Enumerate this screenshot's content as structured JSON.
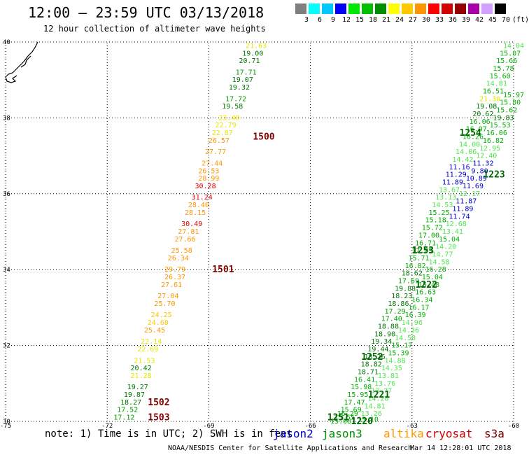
{
  "title": "12:00 – 23:59 UTC 03/13/2018",
  "subtitle": "12 hour collection of altimeter wave heights",
  "scale": {
    "colors": [
      "#7f7f7f",
      "#00ffff",
      "#00c8ff",
      "#0000ff",
      "#00e600",
      "#00c000",
      "#008c00",
      "#ffff00",
      "#ffc800",
      "#ff9600",
      "#ff0000",
      "#d20000",
      "#960000",
      "#aa00aa",
      "#d2a0ff",
      "#000000"
    ],
    "labels": [
      "3",
      "6",
      "9",
      "12",
      "15",
      "18",
      "21",
      "24",
      "27",
      "30",
      "33",
      "36",
      "39",
      "42",
      "45",
      "70",
      "(ft)"
    ]
  },
  "axes": {
    "lon_ticks": [
      "-75",
      "-72",
      "-69",
      "-66",
      "-63",
      "-60"
    ],
    "lat_ticks": [
      "30",
      "32",
      "34",
      "36",
      "38",
      "40"
    ]
  },
  "note": "note: 1) Time is in UTC; 2) SWH is in feet",
  "satellites": [
    {
      "name": "jason2",
      "color": "#0000cc"
    },
    {
      "name": "jason3",
      "color": "#009000"
    },
    {
      "name": "altika",
      "color": "#ff9900"
    },
    {
      "name": "cryosat",
      "color": "#cc0000"
    },
    {
      "name": "s3a",
      "color": "#7a0000"
    }
  ],
  "credit": "NOAA/NESDIS Center for Satellite Applications and Research",
  "timestamp": "Mar 14 12:28:01 UTC 2018",
  "passes": [
    {
      "label": "1500",
      "color": "#800000",
      "lon": -67.7,
      "lat": 37.5
    },
    {
      "label": "1501",
      "color": "#800000",
      "lon": -68.9,
      "lat": 34.0
    },
    {
      "label": "1502",
      "color": "#800000",
      "lon": -70.8,
      "lat": 30.5
    },
    {
      "label": "1503",
      "color": "#800000",
      "lon": -70.8,
      "lat": 30.1
    },
    {
      "label": "1254",
      "color": "#006400",
      "lon": -61.6,
      "lat": 37.6
    },
    {
      "label": "1223",
      "color": "#006400",
      "lon": -60.9,
      "lat": 36.5
    },
    {
      "label": "1253",
      "color": "#006400",
      "lon": -63.0,
      "lat": 34.5
    },
    {
      "label": "1222",
      "color": "#006400",
      "lon": -62.9,
      "lat": 33.6
    },
    {
      "label": "1252",
      "color": "#006400",
      "lon": -64.5,
      "lat": 31.7
    },
    {
      "label": "1221",
      "color": "#006400",
      "lon": -64.3,
      "lat": 30.7
    },
    {
      "label": "1251",
      "color": "#006400",
      "lon": -65.5,
      "lat": 30.1
    },
    {
      "label": "1220",
      "color": "#006400",
      "lon": -64.8,
      "lat": 30.0
    }
  ],
  "tracks": [
    {
      "name": "track-1500",
      "points": [
        {
          "lon": -67.6,
          "lat": 39.9,
          "v": "21.63",
          "c": "#e6e600"
        },
        {
          "lon": -67.7,
          "lat": 39.7,
          "v": "19.00",
          "c": "#007800"
        },
        {
          "lon": -67.8,
          "lat": 39.5,
          "v": "20.71",
          "c": "#007800"
        },
        {
          "lon": -67.9,
          "lat": 39.2,
          "v": "17.71",
          "c": "#00a000"
        },
        {
          "lon": -68.0,
          "lat": 39.0,
          "v": "19.07",
          "c": "#007800"
        },
        {
          "lon": -68.1,
          "lat": 38.8,
          "v": "19.32",
          "c": "#007800"
        },
        {
          "lon": -68.2,
          "lat": 38.5,
          "v": "17.72",
          "c": "#00a000"
        },
        {
          "lon": -68.3,
          "lat": 38.3,
          "v": "19.58",
          "c": "#007800"
        },
        {
          "lon": -68.4,
          "lat": 38.0,
          "v": "23.40",
          "c": "#e6e600"
        },
        {
          "lon": -68.5,
          "lat": 37.8,
          "v": "22.79",
          "c": "#e6e600"
        },
        {
          "lon": -68.6,
          "lat": 37.6,
          "v": "22.87",
          "c": "#e6e600"
        },
        {
          "lon": -68.7,
          "lat": 37.4,
          "v": "26.57",
          "c": "#ff9600"
        },
        {
          "lon": -68.8,
          "lat": 37.1,
          "v": "27.77",
          "c": "#ff9600"
        },
        {
          "lon": -68.9,
          "lat": 36.8,
          "v": "27.44",
          "c": "#ff9600"
        },
        {
          "lon": -69.0,
          "lat": 36.6,
          "v": "26.53",
          "c": "#ff9600"
        },
        {
          "lon": -69.0,
          "lat": 36.4,
          "v": "28.99",
          "c": "#ff9600"
        },
        {
          "lon": -69.1,
          "lat": 36.2,
          "v": "30.28",
          "c": "#e00000"
        },
        {
          "lon": -69.2,
          "lat": 35.9,
          "v": "31.24",
          "c": "#e00000"
        },
        {
          "lon": -69.3,
          "lat": 35.7,
          "v": "28.40",
          "c": "#ff9600"
        },
        {
          "lon": -69.4,
          "lat": 35.5,
          "v": "28.15",
          "c": "#ff9600"
        },
        {
          "lon": -69.5,
          "lat": 35.2,
          "v": "30.49",
          "c": "#e00000"
        },
        {
          "lon": -69.6,
          "lat": 35.0,
          "v": "27.81",
          "c": "#ff9600"
        },
        {
          "lon": -69.7,
          "lat": 34.8,
          "v": "27.66",
          "c": "#ff9600"
        },
        {
          "lon": -69.8,
          "lat": 34.5,
          "v": "25.58",
          "c": "#ff9600"
        },
        {
          "lon": -69.9,
          "lat": 34.3,
          "v": "26.34",
          "c": "#ff9600"
        },
        {
          "lon": -70.0,
          "lat": 34.0,
          "v": "29.79",
          "c": "#ff9600"
        },
        {
          "lon": -70.0,
          "lat": 33.8,
          "v": "26.37",
          "c": "#ff9600"
        },
        {
          "lon": -70.1,
          "lat": 33.6,
          "v": "27.61",
          "c": "#ff9600"
        },
        {
          "lon": -70.2,
          "lat": 33.3,
          "v": "27.04",
          "c": "#ff9600"
        },
        {
          "lon": -70.3,
          "lat": 33.1,
          "v": "25.70",
          "c": "#ff9600"
        },
        {
          "lon": -70.4,
          "lat": 32.8,
          "v": "24.25",
          "c": "#ffc800"
        },
        {
          "lon": -70.5,
          "lat": 32.6,
          "v": "24.60",
          "c": "#ffc800"
        },
        {
          "lon": -70.6,
          "lat": 32.4,
          "v": "25.45",
          "c": "#ff9600"
        },
        {
          "lon": -70.7,
          "lat": 32.1,
          "v": "22.14",
          "c": "#e6e600"
        },
        {
          "lon": -70.8,
          "lat": 31.9,
          "v": "22.69",
          "c": "#e6e600"
        },
        {
          "lon": -70.9,
          "lat": 31.6,
          "v": "21.53",
          "c": "#e6e600"
        },
        {
          "lon": -71.0,
          "lat": 31.4,
          "v": "20.42",
          "c": "#007800"
        },
        {
          "lon": -71.0,
          "lat": 31.2,
          "v": "21.28",
          "c": "#e6e600"
        },
        {
          "lon": -71.1,
          "lat": 30.9,
          "v": "19.27",
          "c": "#007800"
        },
        {
          "lon": -71.2,
          "lat": 30.7,
          "v": "19.87",
          "c": "#007800"
        },
        {
          "lon": -71.3,
          "lat": 30.5,
          "v": "18.27",
          "c": "#007800"
        },
        {
          "lon": -71.4,
          "lat": 30.3,
          "v": "17.52",
          "c": "#00a000"
        },
        {
          "lon": -71.5,
          "lat": 30.1,
          "v": "17.12",
          "c": "#00a000"
        }
      ]
    },
    {
      "name": "track-1254-1251",
      "points": [
        {
          "lon": -60.0,
          "lat": 39.9,
          "v": "14.04",
          "c": "#50e650"
        },
        {
          "lon": -60.1,
          "lat": 39.7,
          "v": "15.07",
          "c": "#00b000"
        },
        {
          "lon": -60.2,
          "lat": 39.5,
          "v": "15.66",
          "c": "#00b000"
        },
        {
          "lon": -60.3,
          "lat": 39.3,
          "v": "15.78",
          "c": "#00b000"
        },
        {
          "lon": -60.4,
          "lat": 39.1,
          "v": "15.60",
          "c": "#00b000"
        },
        {
          "lon": -60.5,
          "lat": 38.9,
          "v": "14.81",
          "c": "#50e650"
        },
        {
          "lon": -60.6,
          "lat": 38.7,
          "v": "16.51",
          "c": "#00b000"
        },
        {
          "lon": -60.7,
          "lat": 38.5,
          "v": "21.30",
          "c": "#e6e600"
        },
        {
          "lon": -60.8,
          "lat": 38.3,
          "v": "19.08",
          "c": "#007800"
        },
        {
          "lon": -60.9,
          "lat": 38.1,
          "v": "20.62",
          "c": "#007800"
        },
        {
          "lon": -61.0,
          "lat": 37.9,
          "v": "16.06",
          "c": "#00b000"
        },
        {
          "lon": -61.1,
          "lat": 37.7,
          "v": "16.97",
          "c": "#00b000"
        },
        {
          "lon": -61.2,
          "lat": 37.5,
          "v": "16.26",
          "c": "#00b000"
        },
        {
          "lon": -61.3,
          "lat": 37.3,
          "v": "14.00",
          "c": "#50e650"
        },
        {
          "lon": -61.4,
          "lat": 37.1,
          "v": "14.06",
          "c": "#50e650"
        },
        {
          "lon": -61.5,
          "lat": 36.9,
          "v": "14.42",
          "c": "#50e650"
        },
        {
          "lon": -61.6,
          "lat": 36.7,
          "v": "11.16",
          "c": "#0000cc"
        },
        {
          "lon": -61.7,
          "lat": 36.5,
          "v": "11.29",
          "c": "#0000cc"
        },
        {
          "lon": -61.8,
          "lat": 36.3,
          "v": "11.89",
          "c": "#0000cc"
        },
        {
          "lon": -61.9,
          "lat": 36.1,
          "v": "13.67",
          "c": "#50e650"
        },
        {
          "lon": -62.0,
          "lat": 35.9,
          "v": "13.13",
          "c": "#50e650"
        },
        {
          "lon": -62.1,
          "lat": 35.7,
          "v": "14.53",
          "c": "#50e650"
        },
        {
          "lon": -62.2,
          "lat": 35.5,
          "v": "15.25",
          "c": "#00b000"
        },
        {
          "lon": -62.3,
          "lat": 35.3,
          "v": "15.18",
          "c": "#00b000"
        },
        {
          "lon": -62.4,
          "lat": 35.1,
          "v": "15.72",
          "c": "#00b000"
        },
        {
          "lon": -62.5,
          "lat": 34.9,
          "v": "17.00",
          "c": "#00a000"
        },
        {
          "lon": -62.6,
          "lat": 34.7,
          "v": "16.71",
          "c": "#00b000"
        },
        {
          "lon": -62.7,
          "lat": 34.5,
          "v": "17.09",
          "c": "#00a000"
        },
        {
          "lon": -62.8,
          "lat": 34.3,
          "v": "15.71",
          "c": "#00b000"
        },
        {
          "lon": -62.9,
          "lat": 34.1,
          "v": "16.82",
          "c": "#00b000"
        },
        {
          "lon": -63.0,
          "lat": 33.9,
          "v": "18.62",
          "c": "#007800"
        },
        {
          "lon": -63.1,
          "lat": 33.7,
          "v": "17.69",
          "c": "#00a000"
        },
        {
          "lon": -63.2,
          "lat": 33.5,
          "v": "19.88",
          "c": "#007800"
        },
        {
          "lon": -63.3,
          "lat": 33.3,
          "v": "18.23",
          "c": "#007800"
        },
        {
          "lon": -63.4,
          "lat": 33.1,
          "v": "18.86",
          "c": "#007800"
        },
        {
          "lon": -63.5,
          "lat": 32.9,
          "v": "17.29",
          "c": "#00a000"
        },
        {
          "lon": -63.6,
          "lat": 32.7,
          "v": "17.40",
          "c": "#00a000"
        },
        {
          "lon": -63.7,
          "lat": 32.5,
          "v": "18.88",
          "c": "#007800"
        },
        {
          "lon": -63.8,
          "lat": 32.3,
          "v": "18.90",
          "c": "#007800"
        },
        {
          "lon": -63.9,
          "lat": 32.1,
          "v": "19.34",
          "c": "#007800"
        },
        {
          "lon": -64.0,
          "lat": 31.9,
          "v": "19.44",
          "c": "#007800"
        },
        {
          "lon": -64.1,
          "lat": 31.7,
          "v": "18.26",
          "c": "#007800"
        },
        {
          "lon": -64.2,
          "lat": 31.5,
          "v": "18.82",
          "c": "#007800"
        },
        {
          "lon": -64.3,
          "lat": 31.3,
          "v": "18.71",
          "c": "#007800"
        },
        {
          "lon": -64.4,
          "lat": 31.1,
          "v": "16.41",
          "c": "#00b000"
        },
        {
          "lon": -64.5,
          "lat": 30.9,
          "v": "15.98",
          "c": "#00b000"
        },
        {
          "lon": -64.6,
          "lat": 30.7,
          "v": "15.95",
          "c": "#00b000"
        },
        {
          "lon": -64.7,
          "lat": 30.5,
          "v": "17.47",
          "c": "#00a000"
        },
        {
          "lon": -64.8,
          "lat": 30.3,
          "v": "15.69",
          "c": "#00b000"
        },
        {
          "lon": -64.9,
          "lat": 30.2,
          "v": "15.29",
          "c": "#00b000"
        },
        {
          "lon": -65.0,
          "lat": 30.1,
          "v": "15.55",
          "c": "#00b000"
        },
        {
          "lon": -65.1,
          "lat": 30.0,
          "v": "15.08",
          "c": "#00b000"
        }
      ]
    },
    {
      "name": "track-1223-1220",
      "points": [
        {
          "lon": -60.0,
          "lat": 38.6,
          "v": "15.97",
          "c": "#00b000"
        },
        {
          "lon": -60.1,
          "lat": 38.4,
          "v": "15.80",
          "c": "#00b000"
        },
        {
          "lon": -60.2,
          "lat": 38.2,
          "v": "15.62",
          "c": "#00b000"
        },
        {
          "lon": -60.3,
          "lat": 38.0,
          "v": "19.83",
          "c": "#007800"
        },
        {
          "lon": -60.4,
          "lat": 37.8,
          "v": "15.53",
          "c": "#00b000"
        },
        {
          "lon": -60.5,
          "lat": 37.6,
          "v": "16.06",
          "c": "#00b000"
        },
        {
          "lon": -60.6,
          "lat": 37.4,
          "v": "16.82",
          "c": "#00b000"
        },
        {
          "lon": -60.7,
          "lat": 37.2,
          "v": "12.95",
          "c": "#50e650"
        },
        {
          "lon": -60.8,
          "lat": 37.0,
          "v": "12.40",
          "c": "#50e650"
        },
        {
          "lon": -60.9,
          "lat": 36.8,
          "v": "11.32",
          "c": "#0000cc"
        },
        {
          "lon": -61.0,
          "lat": 36.6,
          "v": "9.80",
          "c": "#0000cc"
        },
        {
          "lon": -61.1,
          "lat": 36.4,
          "v": "10.89",
          "c": "#0000cc"
        },
        {
          "lon": -61.2,
          "lat": 36.2,
          "v": "11.69",
          "c": "#0000cc"
        },
        {
          "lon": -61.3,
          "lat": 36.0,
          "v": "12.17",
          "c": "#50e650"
        },
        {
          "lon": -61.4,
          "lat": 35.8,
          "v": "11.87",
          "c": "#0000cc"
        },
        {
          "lon": -61.5,
          "lat": 35.6,
          "v": "11.89",
          "c": "#0000cc"
        },
        {
          "lon": -61.6,
          "lat": 35.4,
          "v": "11.74",
          "c": "#0000cc"
        },
        {
          "lon": -61.7,
          "lat": 35.2,
          "v": "12.68",
          "c": "#50e650"
        },
        {
          "lon": -61.8,
          "lat": 35.0,
          "v": "13.41",
          "c": "#50e650"
        },
        {
          "lon": -61.9,
          "lat": 34.8,
          "v": "15.04",
          "c": "#00b000"
        },
        {
          "lon": -62.0,
          "lat": 34.6,
          "v": "14.20",
          "c": "#50e650"
        },
        {
          "lon": -62.1,
          "lat": 34.4,
          "v": "14.77",
          "c": "#50e650"
        },
        {
          "lon": -62.2,
          "lat": 34.2,
          "v": "14.58",
          "c": "#50e650"
        },
        {
          "lon": -62.3,
          "lat": 34.0,
          "v": "16.28",
          "c": "#00b000"
        },
        {
          "lon": -62.4,
          "lat": 33.8,
          "v": "15.04",
          "c": "#00b000"
        },
        {
          "lon": -62.5,
          "lat": 33.6,
          "v": "15.48",
          "c": "#00b000"
        },
        {
          "lon": -62.6,
          "lat": 33.4,
          "v": "16.63",
          "c": "#00b000"
        },
        {
          "lon": -62.7,
          "lat": 33.2,
          "v": "16.34",
          "c": "#00b000"
        },
        {
          "lon": -62.8,
          "lat": 33.0,
          "v": "16.17",
          "c": "#00b000"
        },
        {
          "lon": -62.9,
          "lat": 32.8,
          "v": "16.39",
          "c": "#00b000"
        },
        {
          "lon": -63.0,
          "lat": 32.6,
          "v": "14.96",
          "c": "#50e650"
        },
        {
          "lon": -63.1,
          "lat": 32.4,
          "v": "14.36",
          "c": "#50e650"
        },
        {
          "lon": -63.2,
          "lat": 32.2,
          "v": "14.58",
          "c": "#50e650"
        },
        {
          "lon": -63.3,
          "lat": 32.0,
          "v": "15.17",
          "c": "#00b000"
        },
        {
          "lon": -63.4,
          "lat": 31.8,
          "v": "15.39",
          "c": "#00b000"
        },
        {
          "lon": -63.5,
          "lat": 31.6,
          "v": "14.88",
          "c": "#50e650"
        },
        {
          "lon": -63.6,
          "lat": 31.4,
          "v": "14.35",
          "c": "#50e650"
        },
        {
          "lon": -63.7,
          "lat": 31.2,
          "v": "13.81",
          "c": "#50e650"
        },
        {
          "lon": -63.8,
          "lat": 31.0,
          "v": "13.76",
          "c": "#50e650"
        },
        {
          "lon": -63.9,
          "lat": 30.8,
          "v": "13.77",
          "c": "#50e650"
        },
        {
          "lon": -64.0,
          "lat": 30.6,
          "v": "14.28",
          "c": "#50e650"
        },
        {
          "lon": -64.1,
          "lat": 30.4,
          "v": "14.81",
          "c": "#50e650"
        },
        {
          "lon": -64.2,
          "lat": 30.2,
          "v": "13.26",
          "c": "#50e650"
        },
        {
          "lon": -64.3,
          "lat": 30.05,
          "v": "15.10",
          "c": "#00b000"
        }
      ]
    }
  ]
}
